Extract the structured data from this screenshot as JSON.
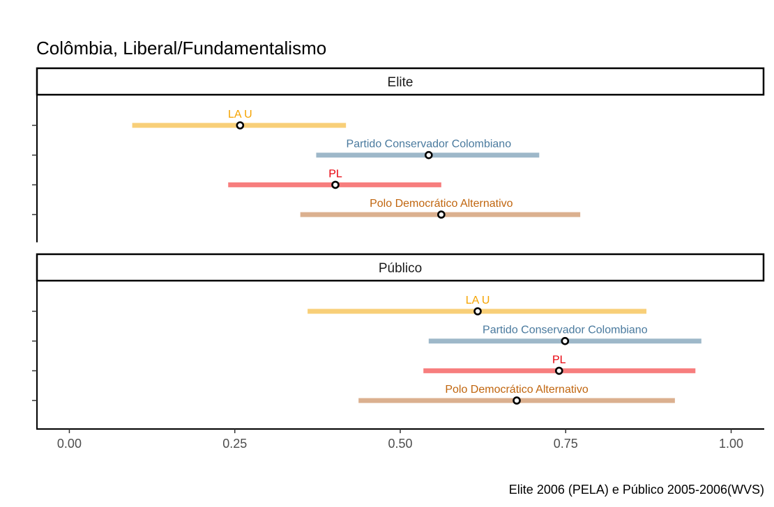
{
  "chart_data": {
    "type": "scatter",
    "title": "Colômbia, Liberal/Fundamentalismo",
    "caption": "Elite 2006 (PELA) e Público 2005-2006(WVS)",
    "xlabel": "",
    "ylabel": "",
    "xlim": [
      -0.05,
      1.05
    ],
    "x_ticks": [
      0.0,
      0.25,
      0.5,
      0.75,
      1.0
    ],
    "x_tick_labels": [
      "0.00",
      "0.25",
      "0.50",
      "0.75",
      "1.00"
    ],
    "grid": false,
    "legend": "none",
    "panels": [
      {
        "name": "Elite",
        "rows": [
          {
            "label": "LA U",
            "color": "#F5A300",
            "bar_color": "#F8CF78",
            "low": 0.095,
            "high": 0.418,
            "estimate": 0.258
          },
          {
            "label": "Partido Conservador Colombiano",
            "color": "#4A7A9E",
            "bar_color": "#9EB8C9",
            "low": 0.373,
            "high": 0.71,
            "estimate": 0.543
          },
          {
            "label": "PL",
            "color": "#E8000B",
            "bar_color": "#F77E7E",
            "low": 0.24,
            "high": 0.562,
            "estimate": 0.402
          },
          {
            "label": "Polo Democrático Alternativo",
            "color": "#C0650E",
            "bar_color": "#DBB08F",
            "low": 0.349,
            "high": 0.772,
            "estimate": 0.562
          }
        ]
      },
      {
        "name": "Público",
        "rows": [
          {
            "label": "LA U",
            "color": "#F5A300",
            "bar_color": "#F8CF78",
            "low": 0.36,
            "high": 0.872,
            "estimate": 0.617
          },
          {
            "label": "Partido Conservador Colombiano",
            "color": "#4A7A9E",
            "bar_color": "#9EB8C9",
            "low": 0.543,
            "high": 0.955,
            "estimate": 0.749
          },
          {
            "label": "PL",
            "color": "#E8000B",
            "bar_color": "#F77E7E",
            "low": 0.535,
            "high": 0.946,
            "estimate": 0.74
          },
          {
            "label": "Polo Democrático Alternativo",
            "color": "#C0650E",
            "bar_color": "#DBB08F",
            "low": 0.437,
            "high": 0.915,
            "estimate": 0.676
          }
        ]
      }
    ]
  }
}
